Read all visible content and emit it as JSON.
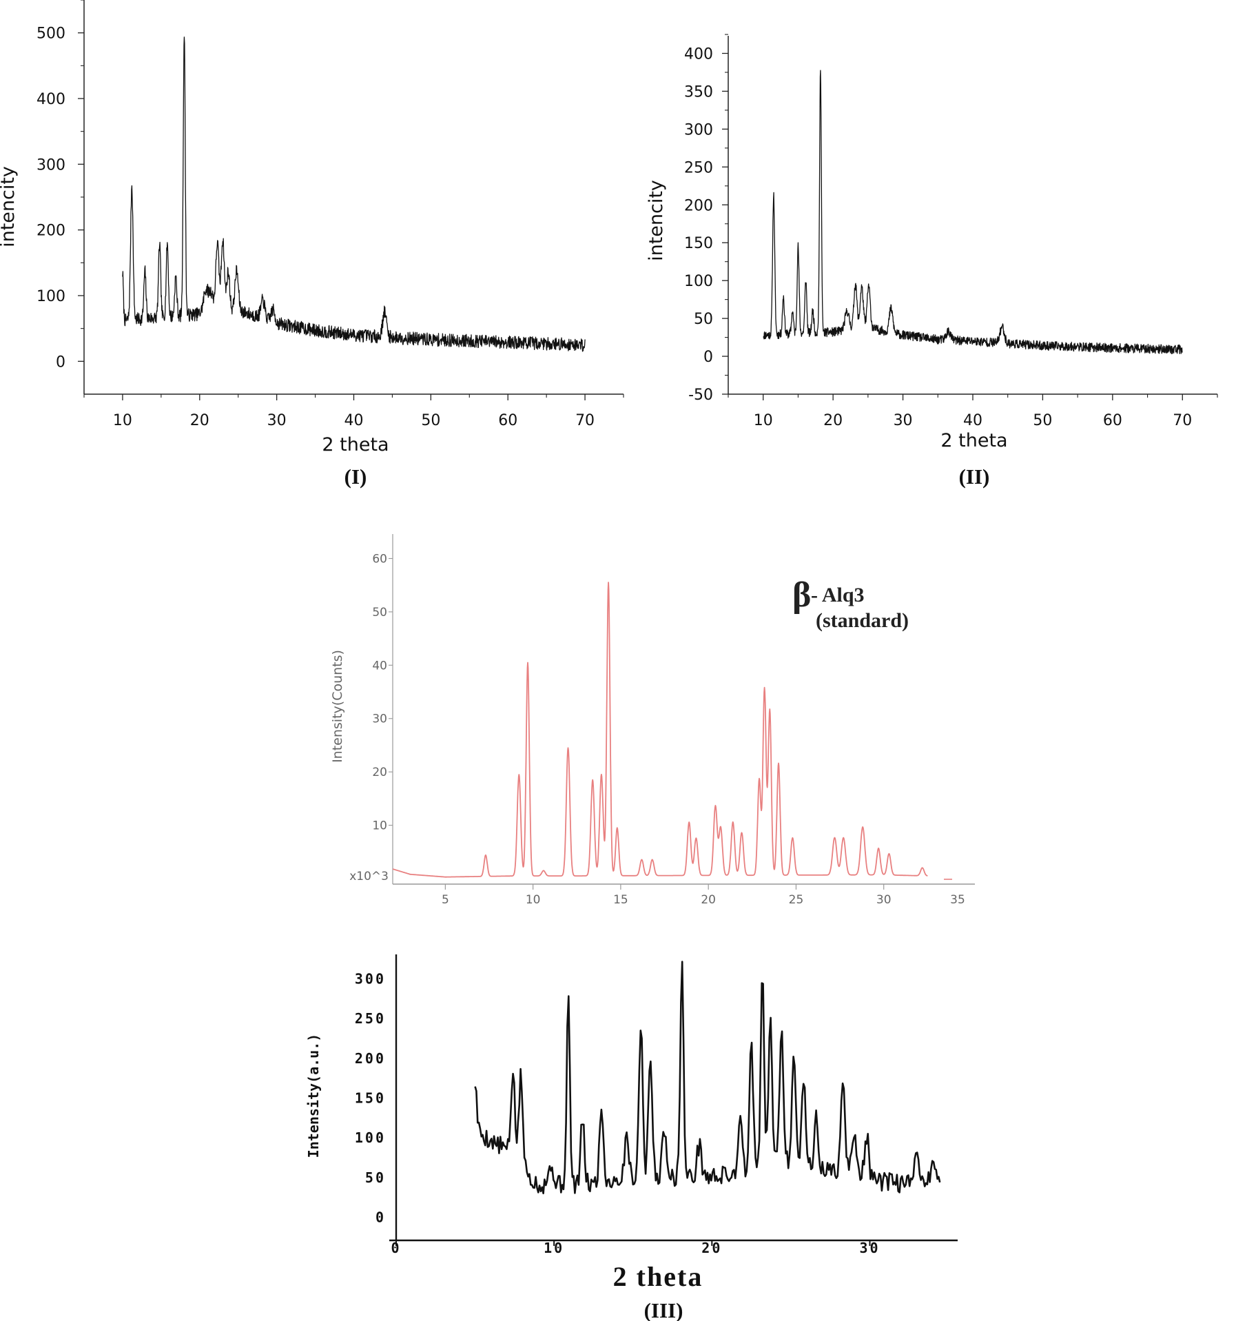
{
  "chart_data": [
    {
      "id": "I",
      "type": "line",
      "caption": "(I)",
      "xlabel": "2 theta",
      "ylabel": "intencity",
      "xlim": [
        5,
        75
      ],
      "ylim": [
        -50,
        550
      ],
      "xticks": [
        10,
        20,
        30,
        40,
        50,
        60,
        70
      ],
      "yticks": [
        0,
        100,
        200,
        300,
        400,
        500
      ],
      "color": "#111111",
      "series": [
        {
          "range": [
            10,
            70
          ],
          "baseline": [
            [
              10,
              62
            ],
            [
              20,
              72
            ],
            [
              25,
              78
            ],
            [
              30,
              58
            ],
            [
              35,
              47
            ],
            [
              40,
              40
            ],
            [
              50,
              33
            ],
            [
              60,
              29
            ],
            [
              70,
              25
            ]
          ],
          "noise": 10,
          "peaks": [
            [
              10,
              72,
              0.1
            ],
            [
              11.2,
              205,
              0.16
            ],
            [
              12.9,
              72,
              0.14
            ],
            [
              14.8,
              112,
              0.14
            ],
            [
              15.8,
              112,
              0.14
            ],
            [
              16.9,
              60,
              0.14
            ],
            [
              18.0,
              430,
              0.13
            ],
            [
              20.8,
              35,
              0.3
            ],
            [
              21.5,
              30,
              0.3
            ],
            [
              22.3,
              105,
              0.2
            ],
            [
              23.0,
              110,
              0.2
            ],
            [
              23.7,
              60,
              0.2
            ],
            [
              24.8,
              60,
              0.22
            ],
            [
              28.2,
              28,
              0.25
            ],
            [
              29.5,
              18,
              0.25
            ],
            [
              44.0,
              38,
              0.25
            ]
          ]
        }
      ]
    },
    {
      "id": "II",
      "type": "line",
      "caption": "(II)",
      "xlabel": "2 theta",
      "ylabel": "intencity",
      "xlim": [
        5,
        75
      ],
      "ylim": [
        -50,
        425
      ],
      "xticks": [
        10,
        20,
        30,
        40,
        50,
        60,
        70
      ],
      "yticks": [
        -50,
        0,
        50,
        100,
        150,
        200,
        250,
        300,
        350,
        400
      ],
      "color": "#111111",
      "series": [
        {
          "range": [
            10,
            70
          ],
          "baseline": [
            [
              10,
              28
            ],
            [
              20,
              32
            ],
            [
              25,
              38
            ],
            [
              30,
              28
            ],
            [
              35,
              22
            ],
            [
              40,
              20
            ],
            [
              50,
              14
            ],
            [
              60,
              11
            ],
            [
              70,
              9
            ]
          ],
          "noise": 6,
          "peaks": [
            [
              11.5,
              185,
              0.15
            ],
            [
              12.9,
              50,
              0.14
            ],
            [
              14.2,
              30,
              0.14
            ],
            [
              15.0,
              115,
              0.14
            ],
            [
              16.1,
              70,
              0.14
            ],
            [
              17.1,
              30,
              0.14
            ],
            [
              18.2,
              350,
              0.13
            ],
            [
              22.0,
              25,
              0.3
            ],
            [
              23.2,
              60,
              0.22
            ],
            [
              24.1,
              55,
              0.22
            ],
            [
              25.1,
              55,
              0.22
            ],
            [
              28.3,
              32,
              0.25
            ],
            [
              36.5,
              12,
              0.3
            ],
            [
              44.2,
              22,
              0.3
            ]
          ]
        }
      ]
    },
    {
      "id": "III-top",
      "type": "line",
      "xlabel": "",
      "ylabel": "Intensity(Counts)",
      "yunit": "x10^3",
      "annotation_symbol": "β",
      "annotation_line1": "- Alq3",
      "annotation_line2": "(standard)",
      "xlim": [
        2,
        35
      ],
      "ylim": [
        0,
        62
      ],
      "xticks": [
        5,
        10,
        15,
        20,
        25,
        30
      ],
      "xtick_extra": "35",
      "yticks": [
        10,
        20,
        30,
        40,
        50,
        60
      ],
      "color": "#e88080",
      "series": [
        {
          "range": [
            2,
            32.5
          ],
          "baseline": [
            [
              2,
              1.8
            ],
            [
              3,
              0.8
            ],
            [
              5,
              0.3
            ],
            [
              9,
              0.5
            ],
            [
              12,
              0.5
            ],
            [
              20,
              0.6
            ],
            [
              30,
              0.7
            ],
            [
              32.5,
              0.5
            ]
          ],
          "noise": 0,
          "peaks": [
            [
              7.3,
              4,
              0.09
            ],
            [
              9.2,
              19,
              0.1
            ],
            [
              9.7,
              40,
              0.09
            ],
            [
              10.6,
              1,
              0.1
            ],
            [
              12.0,
              24,
              0.1
            ],
            [
              13.4,
              18,
              0.1
            ],
            [
              13.9,
              19,
              0.1
            ],
            [
              14.3,
              55,
              0.09
            ],
            [
              14.8,
              9,
              0.09
            ],
            [
              16.2,
              3,
              0.1
            ],
            [
              16.8,
              3,
              0.1
            ],
            [
              18.9,
              10,
              0.1
            ],
            [
              19.3,
              7,
              0.1
            ],
            [
              20.4,
              13,
              0.1
            ],
            [
              20.7,
              9,
              0.1
            ],
            [
              21.4,
              10,
              0.1
            ],
            [
              21.9,
              8,
              0.1
            ],
            [
              22.9,
              18,
              0.09
            ],
            [
              23.2,
              35,
              0.09
            ],
            [
              23.5,
              31,
              0.09
            ],
            [
              24.0,
              21,
              0.09
            ],
            [
              24.8,
              7,
              0.1
            ],
            [
              27.2,
              7,
              0.12
            ],
            [
              27.7,
              7,
              0.12
            ],
            [
              28.8,
              9,
              0.12
            ],
            [
              29.7,
              5,
              0.1
            ],
            [
              30.3,
              4,
              0.1
            ],
            [
              32.2,
              1.5,
              0.1
            ]
          ]
        }
      ]
    },
    {
      "id": "III-bottom",
      "type": "line",
      "caption": "(III)",
      "xlabel": "2 theta",
      "ylabel": "Intensity(a.u.)",
      "xlim": [
        0,
        36
      ],
      "ylim": [
        -30,
        330
      ],
      "xticks": [
        0,
        10,
        20,
        30
      ],
      "yticks": [
        0,
        50,
        100,
        150,
        200,
        250,
        300
      ],
      "color": "#111111",
      "series": [
        {
          "range": [
            5,
            34.5
          ],
          "baseline": [
            [
              5,
              110
            ],
            [
              6,
              95
            ],
            [
              7,
              85
            ],
            [
              8,
              60
            ],
            [
              9,
              40
            ],
            [
              12,
              40
            ],
            [
              15,
              50
            ],
            [
              17,
              50
            ],
            [
              20,
              50
            ],
            [
              22,
              55
            ],
            [
              25,
              70
            ],
            [
              27,
              60
            ],
            [
              30,
              45
            ],
            [
              33,
              40
            ],
            [
              34.5,
              50
            ]
          ],
          "noise": 12,
          "peaks": [
            [
              5.0,
              60,
              0.1
            ],
            [
              7.4,
              110,
              0.12
            ],
            [
              7.9,
              115,
              0.12
            ],
            [
              9.8,
              20,
              0.2
            ],
            [
              10.9,
              235,
              0.1
            ],
            [
              11.8,
              80,
              0.12
            ],
            [
              13.0,
              95,
              0.12
            ],
            [
              14.6,
              60,
              0.12
            ],
            [
              15.5,
              190,
              0.12
            ],
            [
              16.1,
              150,
              0.12
            ],
            [
              17.0,
              60,
              0.14
            ],
            [
              18.1,
              275,
              0.1
            ],
            [
              19.2,
              40,
              0.14
            ],
            [
              21.8,
              80,
              0.12
            ],
            [
              22.5,
              155,
              0.12
            ],
            [
              23.2,
              255,
              0.1
            ],
            [
              23.7,
              180,
              0.12
            ],
            [
              24.4,
              170,
              0.12
            ],
            [
              25.2,
              140,
              0.12
            ],
            [
              25.8,
              110,
              0.12
            ],
            [
              26.6,
              60,
              0.12
            ],
            [
              28.3,
              110,
              0.14
            ],
            [
              29.0,
              60,
              0.14
            ],
            [
              29.8,
              55,
              0.14
            ],
            [
              33.0,
              45,
              0.14
            ],
            [
              34.0,
              20,
              0.14
            ]
          ]
        }
      ]
    }
  ]
}
